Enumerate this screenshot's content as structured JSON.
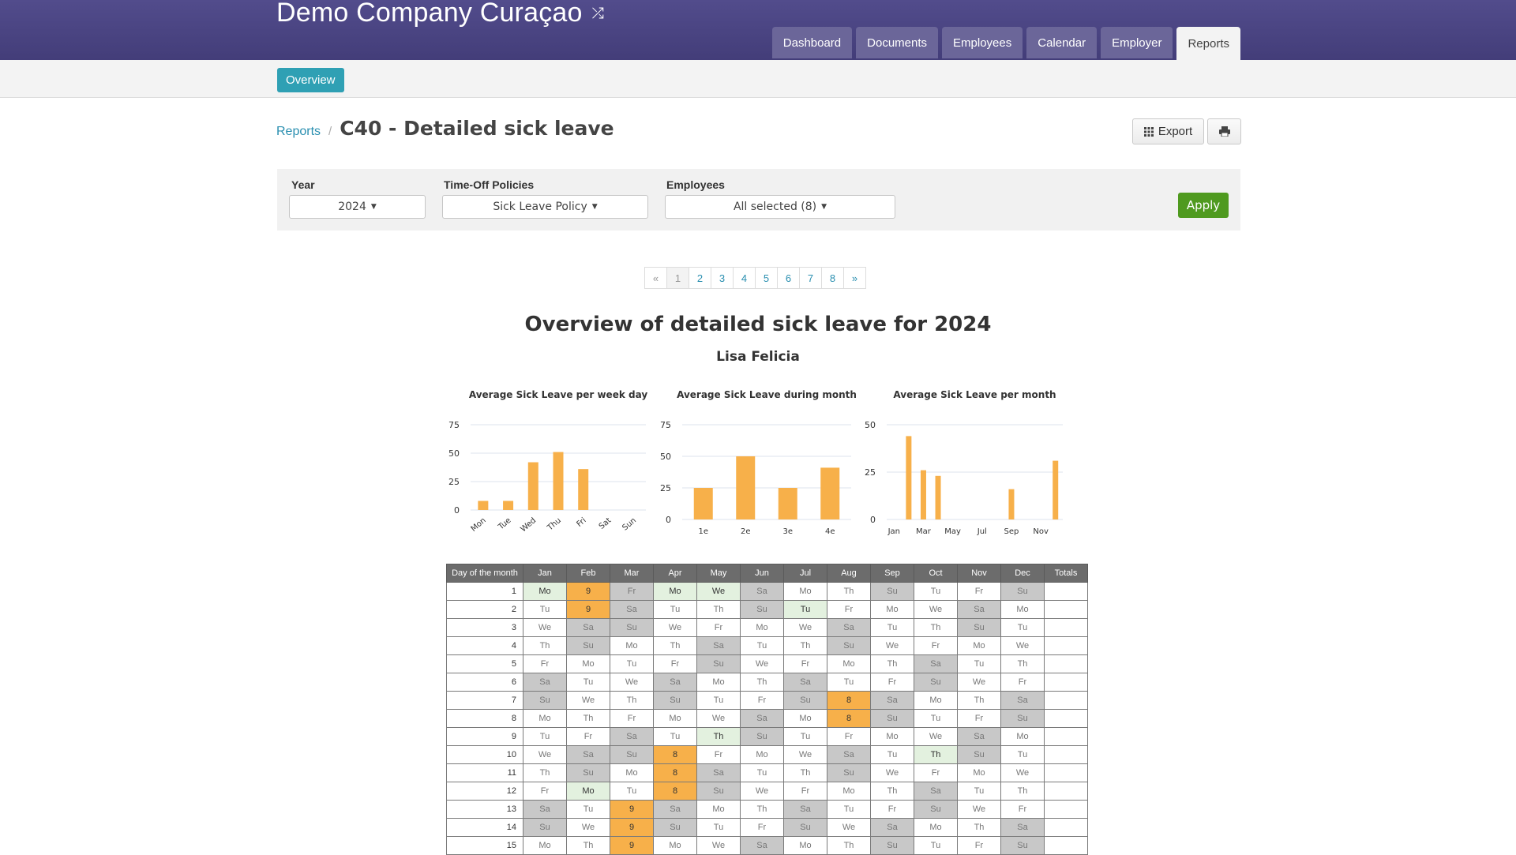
{
  "header": {
    "company": "Demo Company Curaçao",
    "nav": [
      "Dashboard",
      "Documents",
      "Employees",
      "Calendar",
      "Employer",
      "Reports"
    ],
    "active_nav": "Reports"
  },
  "subnav": {
    "overview_label": "Overview"
  },
  "breadcrumb": {
    "parent": "Reports",
    "separator": "/",
    "title": "C40 - Detailed sick leave"
  },
  "toolbar": {
    "export_label": "Export"
  },
  "filters": {
    "year_label": "Year",
    "year_value": "2024",
    "policy_label": "Time-Off Policies",
    "policy_value": "Sick Leave Policy",
    "employees_label": "Employees",
    "employees_value": "All selected (8)",
    "apply_label": "Apply"
  },
  "pagination": {
    "prev": "«",
    "pages": [
      "1",
      "2",
      "3",
      "4",
      "5",
      "6",
      "7",
      "8"
    ],
    "current": "1",
    "next": "»"
  },
  "report": {
    "title": "Overview of detailed sick leave for 2024",
    "employee": "Lisa Felicia"
  },
  "chart_data": [
    {
      "type": "bar",
      "title": "Average Sick Leave per week day",
      "categories": [
        "Mon",
        "Tue",
        "Wed",
        "Thu",
        "Fri",
        "Sat",
        "Sun"
      ],
      "values": [
        8,
        8,
        42,
        51,
        36,
        0,
        0
      ],
      "ylim": [
        0,
        75
      ],
      "yticks": [
        0,
        25,
        50,
        75
      ],
      "color": "#f7b04a"
    },
    {
      "type": "bar",
      "title": "Average Sick Leave during month",
      "categories": [
        "1e",
        "2e",
        "3e",
        "4e"
      ],
      "values": [
        25,
        50,
        25,
        41
      ],
      "ylim": [
        0,
        75
      ],
      "yticks": [
        0,
        25,
        50,
        75
      ],
      "color": "#f7b04a"
    },
    {
      "type": "bar",
      "title": "Average Sick Leave per month",
      "categories": [
        "Jan",
        "Feb",
        "Mar",
        "Apr",
        "May",
        "Jun",
        "Jul",
        "Aug",
        "Sep",
        "Oct",
        "Nov",
        "Dec"
      ],
      "tick_labels": [
        "Jan",
        "",
        "Mar",
        "",
        "May",
        "",
        "Jul",
        "",
        "Sep",
        "",
        "Nov",
        ""
      ],
      "values": [
        0,
        44,
        26,
        23,
        0,
        0,
        0,
        0,
        16,
        0,
        0,
        31
      ],
      "ylim": [
        0,
        50
      ],
      "yticks": [
        0,
        25,
        50
      ],
      "color": "#f7b04a"
    }
  ],
  "table": {
    "columns": [
      "Day of the month",
      "Jan",
      "Feb",
      "Mar",
      "Apr",
      "May",
      "Jun",
      "Jul",
      "Aug",
      "Sep",
      "Oct",
      "Nov",
      "Dec",
      "Totals"
    ],
    "rows": [
      {
        "day": "1",
        "cells": [
          "Mo",
          "9",
          "Fr",
          "Mo",
          "We",
          "Sa",
          "Mo",
          "Th",
          "Su",
          "Tu",
          "Fr",
          "Su"
        ],
        "types": "hswhhwnnwnnw"
      },
      {
        "day": "2",
        "cells": [
          "Tu",
          "9",
          "Sa",
          "Tu",
          "Th",
          "Su",
          "Tu",
          "Fr",
          "Mo",
          "We",
          "Sa",
          "Mo"
        ],
        "types": "nswnnwhnnnwn"
      },
      {
        "day": "3",
        "cells": [
          "We",
          "Sa",
          "Su",
          "We",
          "Fr",
          "Mo",
          "We",
          "Sa",
          "Tu",
          "Th",
          "Su",
          "Tu"
        ],
        "types": "nwwnnnnwnnwn"
      },
      {
        "day": "4",
        "cells": [
          "Th",
          "Su",
          "Mo",
          "Th",
          "Sa",
          "Tu",
          "Th",
          "Su",
          "We",
          "Fr",
          "Mo",
          "We"
        ],
        "types": "nwnnwnnwnnnn"
      },
      {
        "day": "5",
        "cells": [
          "Fr",
          "Mo",
          "Tu",
          "Fr",
          "Su",
          "We",
          "Fr",
          "Mo",
          "Th",
          "Sa",
          "Tu",
          "Th"
        ],
        "types": "nnnnwnnnnwnn"
      },
      {
        "day": "6",
        "cells": [
          "Sa",
          "Tu",
          "We",
          "Sa",
          "Mo",
          "Th",
          "Sa",
          "Tu",
          "Fr",
          "Su",
          "We",
          "Fr"
        ],
        "types": "wnnwnnwnnwnn"
      },
      {
        "day": "7",
        "cells": [
          "Su",
          "We",
          "Th",
          "Su",
          "Tu",
          "Fr",
          "Su",
          "8",
          "Sa",
          "Mo",
          "Th",
          "Sa"
        ],
        "types": "wnnwnnwswnnw"
      },
      {
        "day": "8",
        "cells": [
          "Mo",
          "Th",
          "Fr",
          "Mo",
          "We",
          "Sa",
          "Mo",
          "8",
          "Su",
          "Tu",
          "Fr",
          "Su"
        ],
        "types": "nnnnnwnswnnw"
      },
      {
        "day": "9",
        "cells": [
          "Tu",
          "Fr",
          "Sa",
          "Tu",
          "Th",
          "Su",
          "Tu",
          "Fr",
          "Mo",
          "We",
          "Sa",
          "Mo"
        ],
        "types": "nnwnhwnnnnwn"
      },
      {
        "day": "10",
        "cells": [
          "We",
          "Sa",
          "Su",
          "8",
          "Fr",
          "Mo",
          "We",
          "Sa",
          "Tu",
          "Th",
          "Su",
          "Tu"
        ],
        "types": "nwwsnnnwnhwn"
      },
      {
        "day": "11",
        "cells": [
          "Th",
          "Su",
          "Mo",
          "8",
          "Sa",
          "Tu",
          "Th",
          "Su",
          "We",
          "Fr",
          "Mo",
          "We"
        ],
        "types": "nwnswnnwnnnn"
      },
      {
        "day": "12",
        "cells": [
          "Fr",
          "Mo",
          "Tu",
          "8",
          "Su",
          "We",
          "Fr",
          "Mo",
          "Th",
          "Sa",
          "Tu",
          "Th"
        ],
        "types": "nhnswnnnnwnn"
      },
      {
        "day": "13",
        "cells": [
          "Sa",
          "Tu",
          "9",
          "Sa",
          "Mo",
          "Th",
          "Sa",
          "Tu",
          "Fr",
          "Su",
          "We",
          "Fr"
        ],
        "types": "wnswnnwnnwnn"
      },
      {
        "day": "14",
        "cells": [
          "Su",
          "We",
          "9",
          "Su",
          "Tu",
          "Fr",
          "Su",
          "We",
          "Sa",
          "Mo",
          "Th",
          "Sa"
        ],
        "types": "wnswnnwnwnnw"
      },
      {
        "day": "15",
        "cells": [
          "Mo",
          "Th",
          "9",
          "Mo",
          "We",
          "Sa",
          "Mo",
          "Th",
          "Su",
          "Tu",
          "Fr",
          "Su"
        ],
        "types": "nnsnnwnnwnnw"
      }
    ]
  }
}
